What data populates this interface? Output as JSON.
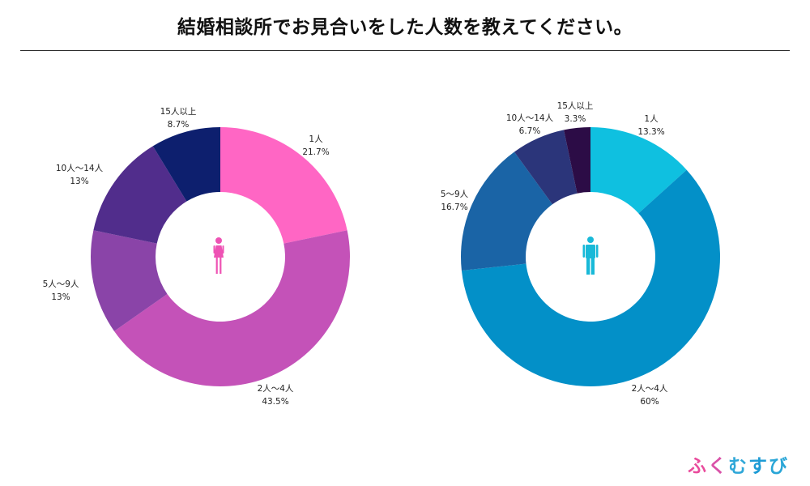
{
  "title": "結婚相談所でお見合いをした人数を教えてください。",
  "brand": {
    "text": "ふくむすび",
    "colors": [
      "#e94b9c",
      "#d952a8",
      "#2fa7d8",
      "#1d9bd5",
      "#2aa6d7"
    ]
  },
  "chart_data": [
    {
      "type": "pie",
      "variant": "donut",
      "name": "female",
      "icon": "female-icon",
      "icon_color": "#ee52b4",
      "categories": [
        "1人",
        "2人〜4人",
        "5人〜9人",
        "10人〜14人",
        "15人以上"
      ],
      "values": [
        21.7,
        43.5,
        13,
        13,
        8.7
      ],
      "value_labels": [
        "21.7%",
        "43.5%",
        "13%",
        "13%",
        "8.7%"
      ],
      "colors": [
        "#ff66c4",
        "#c452b8",
        "#8a44a8",
        "#512d8c",
        "#0d1f6e"
      ]
    },
    {
      "type": "pie",
      "variant": "donut",
      "name": "male",
      "icon": "male-icon",
      "icon_color": "#18b9d8",
      "categories": [
        "1人",
        "2人〜4人",
        "5〜9人",
        "10人〜14人",
        "15人以上"
      ],
      "values": [
        13.3,
        60,
        16.7,
        6.7,
        3.3
      ],
      "value_labels": [
        "13.3%",
        "60%",
        "16.7%",
        "6.7%",
        "3.3%"
      ],
      "colors": [
        "#0fc0e0",
        "#0390c8",
        "#1a64a6",
        "#2b357a",
        "#2c0c46"
      ]
    }
  ]
}
